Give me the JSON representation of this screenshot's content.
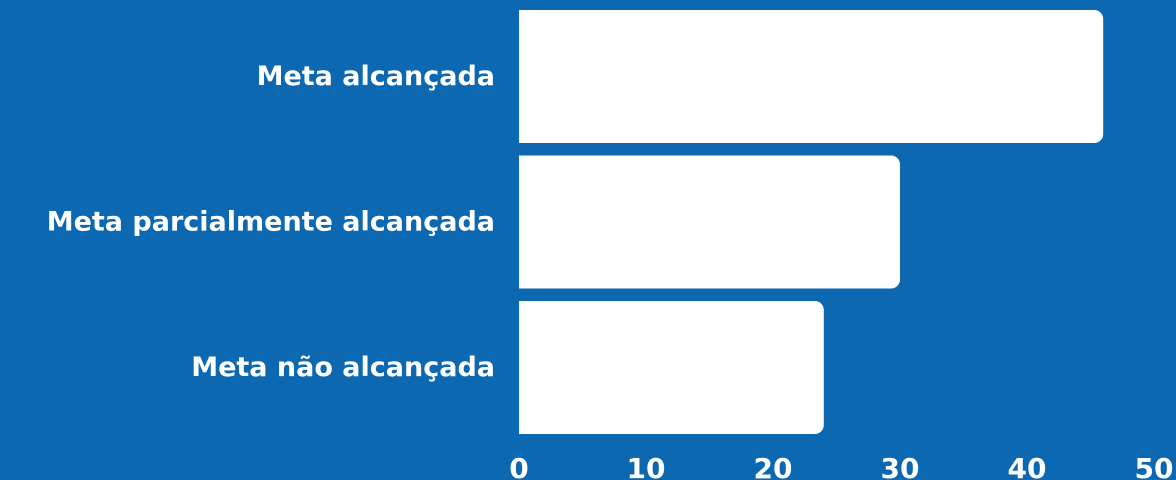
{
  "chart_data": {
    "type": "bar",
    "orientation": "horizontal",
    "categories": [
      "Meta alcançada",
      "Meta parcialmente alcançada",
      "Meta não alcançada"
    ],
    "values": [
      46,
      30,
      24
    ],
    "xlim": [
      0,
      50
    ],
    "x_ticks": [
      "0",
      "10",
      "20",
      "30",
      "40",
      "50"
    ],
    "grid": false,
    "legend": "none",
    "colors": {
      "background": "#0b68b1",
      "bar": "#ffffff",
      "text": "#ffffff"
    }
  }
}
